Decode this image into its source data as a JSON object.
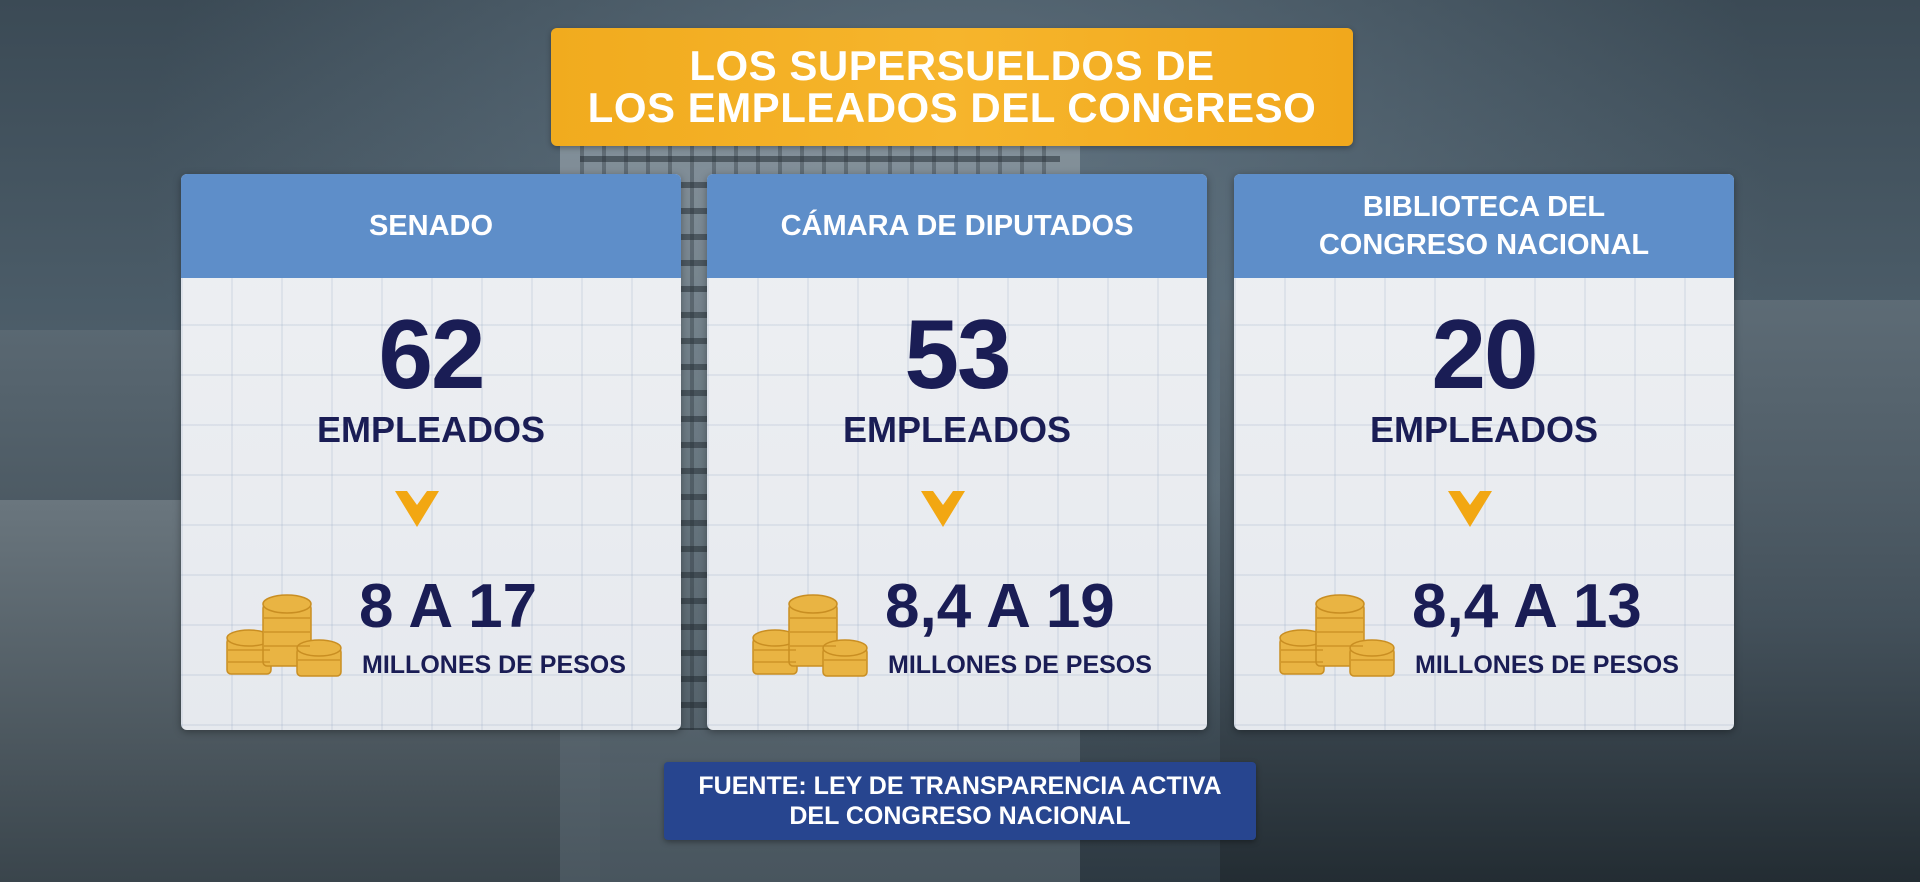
{
  "title": {
    "line1": "LOS SUPERSUELDOS DE",
    "line2": "LOS EMPLEADOS DEL CONGRESO"
  },
  "cards": [
    {
      "header_line1": "SENADO",
      "header_line2": "",
      "count": "62",
      "count_label": "EMPLEADOS",
      "range": "8 A 17",
      "range_unit": "MILLONES DE PESOS"
    },
    {
      "header_line1": "CÁMARA DE DIPUTADOS",
      "header_line2": "",
      "count": "53",
      "count_label": "EMPLEADOS",
      "range": "8,4 A 19",
      "range_unit": "MILLONES DE PESOS"
    },
    {
      "header_line1": "BIBLIOTECA DEL",
      "header_line2": "CONGRESO NACIONAL",
      "count": "20",
      "count_label": "EMPLEADOS",
      "range": "8,4 A 13",
      "range_unit": "MILLONES DE PESOS"
    }
  ],
  "source": {
    "line1": "FUENTE: LEY DE TRANSPARENCIA ACTIVA",
    "line2": "DEL CONGRESO NACIONAL"
  },
  "icons": {
    "chevron": "chevron-down-icon",
    "coins": "coins-icon"
  },
  "colors": {
    "title_banner": "#f4b126",
    "card_header": "#5e8ec9",
    "text_navy": "#1a1d55",
    "chevron": "#f2a712",
    "coin": "#e9b443",
    "source_banner": "#27458f"
  }
}
